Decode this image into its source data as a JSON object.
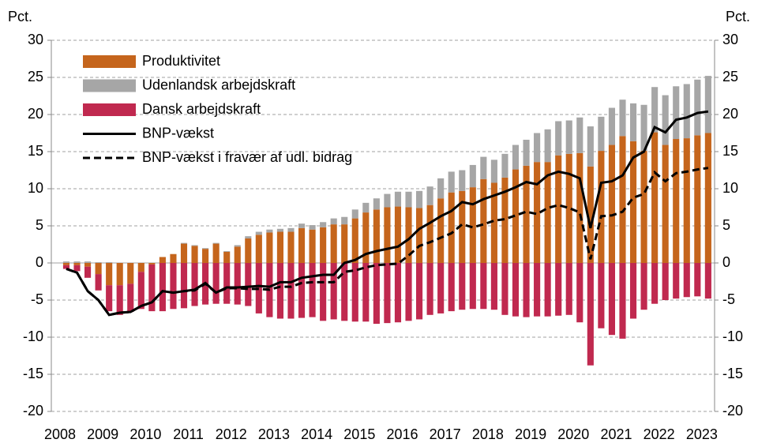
{
  "chart_data": {
    "type": "bar",
    "stacked": true,
    "y_unit_label": "Pct.",
    "categories": [
      "2008",
      null,
      null,
      null,
      "2009",
      null,
      null,
      null,
      "2010",
      null,
      null,
      null,
      "2011",
      null,
      null,
      null,
      "2012",
      null,
      null,
      null,
      "2013",
      null,
      null,
      null,
      "2014",
      null,
      null,
      null,
      "2015",
      null,
      null,
      null,
      "2016",
      null,
      null,
      null,
      "2017",
      null,
      null,
      null,
      "2018",
      null,
      null,
      null,
      "2019",
      null,
      null,
      null,
      "2020",
      null,
      null,
      null,
      "2021",
      null,
      null,
      null,
      "2022",
      null,
      null,
      null,
      "2023"
    ],
    "series": [
      {
        "name": "Produktivitet",
        "type": "bar",
        "color": "#c5651c",
        "values": [
          -0.3,
          -0.3,
          -0.5,
          -1.5,
          -3,
          -3,
          -2.8,
          -1.2,
          -0.2,
          0.8,
          1.2,
          2.6,
          2.3,
          1.9,
          2.6,
          1.5,
          2.2,
          3.3,
          3.8,
          4.1,
          4.2,
          4.2,
          4.7,
          4.5,
          4.8,
          5.2,
          5.2,
          6.0,
          6.8,
          7.2,
          7.5,
          7.6,
          7.5,
          7.4,
          7.8,
          8.7,
          9.5,
          9.7,
          10.2,
          11.3,
          10.8,
          11.5,
          12.6,
          13.1,
          13.6,
          13.6,
          14.5,
          14.7,
          14.8,
          13.0,
          15.1,
          15.9,
          17.1,
          16.4,
          15.1,
          17.6,
          15.9,
          16.7,
          16.8,
          17.2,
          17.5
        ]
      },
      {
        "name": "Udenlandsk arbejdskraft",
        "type": "bar",
        "color": "#a6a6a6",
        "values": [
          0.2,
          0.2,
          0.2,
          0.1,
          0.1,
          0,
          0,
          0,
          0,
          0,
          0,
          0.1,
          0.1,
          0.1,
          0.1,
          0.1,
          0.2,
          0.3,
          0.4,
          0.4,
          0.4,
          0.5,
          0.6,
          0.6,
          0.7,
          0.8,
          1.0,
          1.2,
          1.3,
          1.5,
          1.8,
          2.0,
          2.1,
          2.3,
          2.5,
          2.7,
          2.8,
          2.8,
          3.0,
          3.0,
          3.1,
          3.2,
          3.3,
          3.5,
          3.9,
          4.4,
          4.6,
          4.5,
          4.8,
          5.4,
          4.6,
          5.0,
          4.9,
          5.1,
          6.2,
          6.1,
          6.7,
          7.1,
          7.3,
          7.5,
          7.7
        ]
      },
      {
        "name": "Dansk arbejdskraft",
        "type": "bar",
        "color": "#c0294f",
        "values": [
          -0.5,
          -0.8,
          -1.5,
          -2.2,
          -3.5,
          -4,
          -3.8,
          -5,
          -6.3,
          -6.5,
          -6.2,
          -6.1,
          -5.8,
          -5.6,
          -5.5,
          -5.5,
          -5.6,
          -5.8,
          -6.8,
          -7.3,
          -7.5,
          -7.5,
          -7.4,
          -7.3,
          -7.8,
          -7.6,
          -7.8,
          -7.9,
          -7.9,
          -8.2,
          -8.1,
          -8.0,
          -7.8,
          -7.6,
          -7.0,
          -6.8,
          -6.5,
          -6.3,
          -6.2,
          -6.2,
          -6.3,
          -7.0,
          -7.2,
          -7.3,
          -7.2,
          -7.2,
          -7.1,
          -7.0,
          -8.0,
          -13.8,
          -8.8,
          -9.7,
          -10.2,
          -7.5,
          -6.3,
          -5.5,
          -5.0,
          -4.8,
          -4.6,
          -4.5,
          -4.8
        ]
      },
      {
        "name": "BNP-vækst",
        "type": "line",
        "color": "#000000",
        "dashed": false,
        "values": [
          -0.8,
          -1.3,
          -3.8,
          -5,
          -7,
          -6.7,
          -6.6,
          -5.8,
          -5.3,
          -3.8,
          -4,
          -3.8,
          -3.6,
          -2.7,
          -4,
          -3.3,
          -3.3,
          -3.2,
          -3.1,
          -3.2,
          -2.6,
          -2.6,
          -2,
          -1.8,
          -1.6,
          -1.6,
          0,
          0.4,
          1.2,
          1.6,
          1.9,
          2.2,
          3.2,
          4.6,
          5.4,
          6.3,
          7,
          8.2,
          7.9,
          8.6,
          9.1,
          9.6,
          10.2,
          10.9,
          10.6,
          11.8,
          12.3,
          12.0,
          11.4,
          4.7,
          10.8,
          11.0,
          11.8,
          14.2,
          15.0,
          18.3,
          17.6,
          19.3,
          19.6,
          20.2,
          20.4
        ]
      },
      {
        "name": "BNP-vækst i fravær af udl. bidrag",
        "type": "line",
        "color": "#000000",
        "dashed": true,
        "values": [
          -0.8,
          -1.3,
          -3.8,
          -5,
          -7,
          -6.7,
          -6.6,
          -5.8,
          -5.3,
          -3.8,
          -4,
          -3.8,
          -3.7,
          -2.8,
          -4,
          -3.4,
          -3.4,
          -3.5,
          -3.5,
          -3.6,
          -3.2,
          -3.2,
          -2.7,
          -2.6,
          -2.6,
          -2.6,
          -1.2,
          -1.0,
          -0.6,
          -0.3,
          -0.2,
          -0.1,
          1.0,
          2.3,
          2.8,
          3.4,
          4.0,
          5.2,
          4.8,
          5.2,
          5.7,
          5.9,
          6.4,
          6.9,
          6.6,
          7.4,
          7.8,
          7.4,
          6.8,
          0.5,
          6.3,
          6.4,
          6.9,
          8.8,
          9.3,
          12.2,
          11.0,
          12.1,
          12.3,
          12.6,
          12.8
        ]
      }
    ],
    "ylim": [
      -20,
      30
    ],
    "yticks": [
      -20,
      -15,
      -10,
      -5,
      0,
      5,
      10,
      15,
      20,
      25,
      30
    ],
    "grid": true,
    "legend": "top-left"
  }
}
